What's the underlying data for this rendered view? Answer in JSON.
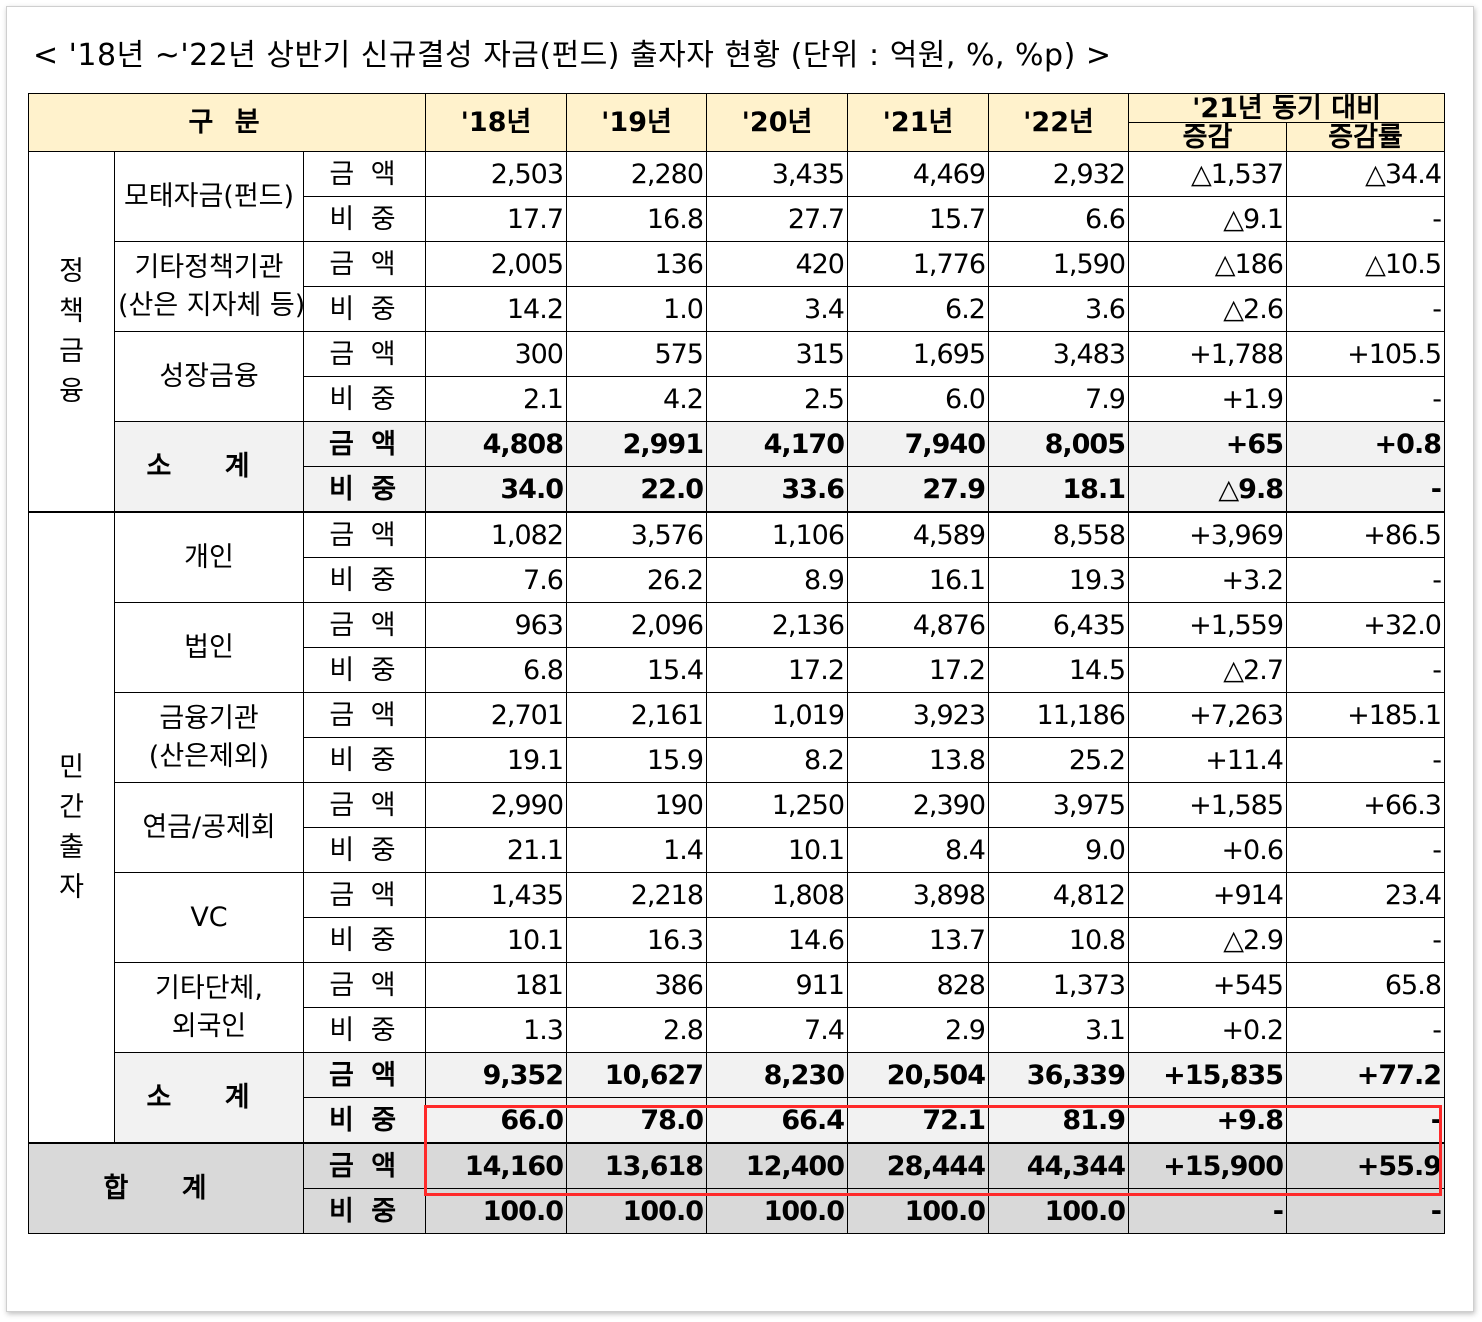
{
  "title": "< '18년 ~'22년 상반기 신규결성 자금(펀드) 출자자 현황 (단위 : 억원, %, %p) >",
  "header": {
    "category": "구 분",
    "years": [
      "'18년",
      "'19년",
      "'20년",
      "'21년",
      "'22년"
    ],
    "compare_group": "'21년 동기 대비",
    "change": "증감",
    "change_rate": "증감률"
  },
  "colors": {
    "header_bg": "#fff2cc",
    "subtotal_bg": "#f2f2f2",
    "total_bg": "#d9d9d9",
    "increase": "#ff1a1a",
    "decrease": "#1a1aff",
    "highlight_box": "#ff2a2a"
  },
  "metric_labels": {
    "amount": "금 액",
    "share": "비 중"
  },
  "groups": [
    {
      "name": "정책금융",
      "name_chars": [
        "정",
        "책",
        "금",
        "융"
      ]
    },
    {
      "name": "민간출자",
      "name_chars": [
        "민",
        "간",
        "출",
        "자"
      ]
    }
  ],
  "rows": [
    {
      "category": "모태자금(펀드)",
      "category_lines": [
        "모태자금(펀드)"
      ],
      "amount": [
        "2,503",
        "2,280",
        "3,435",
        "4,469",
        "2,932",
        "△1,537",
        "△34.4"
      ],
      "share": [
        "17.7",
        "16.8",
        "27.7",
        "15.7",
        "6.6",
        "△9.1",
        "-"
      ]
    },
    {
      "category": "기타정책기관 (산은 지자체 등)",
      "category_lines": [
        "기타정책기관",
        "(산은 지자체 등)"
      ],
      "amount": [
        "2,005",
        "136",
        "420",
        "1,776",
        "1,590",
        "△186",
        "△10.5"
      ],
      "share": [
        "14.2",
        "1.0",
        "3.4",
        "6.2",
        "3.6",
        "△2.6",
        "-"
      ]
    },
    {
      "category": "성장금융",
      "category_lines": [
        "성장금융"
      ],
      "amount": [
        "300",
        "575",
        "315",
        "1,695",
        "3,483",
        "+1,788",
        "+105.5"
      ],
      "share": [
        "2.1",
        "4.2",
        "2.5",
        "6.0",
        "7.9",
        "+1.9",
        "-"
      ]
    },
    {
      "category": "소 계",
      "amount": [
        "4,808",
        "2,991",
        "4,170",
        "7,940",
        "8,005",
        "+65",
        "+0.8"
      ],
      "share": [
        "34.0",
        "22.0",
        "33.6",
        "27.9",
        "18.1",
        "△9.8",
        "-"
      ]
    },
    {
      "category": "개인",
      "category_lines": [
        "개인"
      ],
      "amount": [
        "1,082",
        "3,576",
        "1,106",
        "4,589",
        "8,558",
        "+3,969",
        "+86.5"
      ],
      "share": [
        "7.6",
        "26.2",
        "8.9",
        "16.1",
        "19.3",
        "+3.2",
        "-"
      ]
    },
    {
      "category": "법인",
      "category_lines": [
        "법인"
      ],
      "amount": [
        "963",
        "2,096",
        "2,136",
        "4,876",
        "6,435",
        "+1,559",
        "+32.0"
      ],
      "share": [
        "6.8",
        "15.4",
        "17.2",
        "17.2",
        "14.5",
        "△2.7",
        "-"
      ]
    },
    {
      "category": "금융기관 (산은제외)",
      "category_lines": [
        "금융기관",
        "(산은제외)"
      ],
      "amount": [
        "2,701",
        "2,161",
        "1,019",
        "3,923",
        "11,186",
        "+7,263",
        "+185.1"
      ],
      "share": [
        "19.1",
        "15.9",
        "8.2",
        "13.8",
        "25.2",
        "+11.4",
        "-"
      ]
    },
    {
      "category": "연금/공제회",
      "category_lines": [
        "연금/공제회"
      ],
      "amount": [
        "2,990",
        "190",
        "1,250",
        "2,390",
        "3,975",
        "+1,585",
        "+66.3"
      ],
      "share": [
        "21.1",
        "1.4",
        "10.1",
        "8.4",
        "9.0",
        "+0.6",
        "-"
      ]
    },
    {
      "category": "VC",
      "category_lines": [
        "VC"
      ],
      "amount": [
        "1,435",
        "2,218",
        "1,808",
        "3,898",
        "4,812",
        "+914",
        "23.4"
      ],
      "share": [
        "10.1",
        "16.3",
        "14.6",
        "13.7",
        "10.8",
        "△2.9",
        "-"
      ]
    },
    {
      "category": "기타단체, 외국인",
      "category_lines": [
        "기타단체,",
        "외국인"
      ],
      "amount": [
        "181",
        "386",
        "911",
        "828",
        "1,373",
        "+545",
        "65.8"
      ],
      "share": [
        "1.3",
        "2.8",
        "7.4",
        "2.9",
        "3.1",
        "+0.2",
        "-"
      ]
    },
    {
      "category": "소 계",
      "amount": [
        "9,352",
        "10,627",
        "8,230",
        "20,504",
        "36,339",
        "+15,835",
        "+77.2"
      ],
      "share": [
        "66.0",
        "78.0",
        "66.4",
        "72.1",
        "81.9",
        "+9.8",
        "-"
      ]
    },
    {
      "category": "합 계",
      "amount": [
        "14,160",
        "13,618",
        "12,400",
        "28,444",
        "44,344",
        "+15,900",
        "+55.9"
      ],
      "share": [
        "100.0",
        "100.0",
        "100.0",
        "100.0",
        "100.0",
        "-",
        "-"
      ]
    }
  ]
}
